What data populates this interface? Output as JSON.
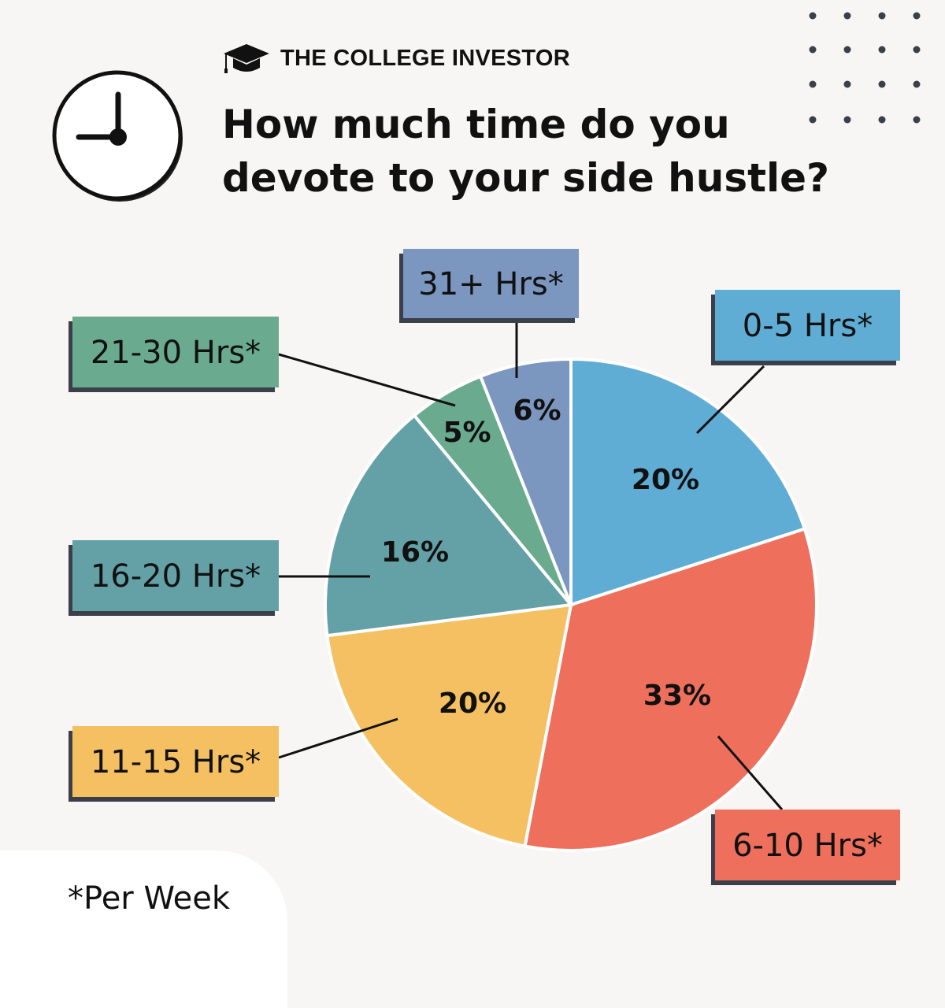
{
  "brand": {
    "name": "THE COLLEGE INVESTOR",
    "icon": "graduation-cap-icon"
  },
  "header_icon": "clock-icon",
  "footnote": "*Per Week",
  "background_color": "#f8f6f4",
  "chart_data": {
    "type": "pie",
    "title": "How much time do you devote to your side hustle?",
    "start": "top, clockwise",
    "slices": [
      {
        "label": "0-5 Hrs*",
        "value": 20,
        "value_label": "20%",
        "color": "#5fadd5"
      },
      {
        "label": "6-10 Hrs*",
        "value": 33,
        "value_label": "33%",
        "color": "#ee705c"
      },
      {
        "label": "11-15 Hrs*",
        "value": 20,
        "value_label": "20%",
        "color": "#f5c062"
      },
      {
        "label": "16-20 Hrs*",
        "value": 16,
        "value_label": "16%",
        "color": "#64a1a7"
      },
      {
        "label": "21-30 Hrs*",
        "value": 5,
        "value_label": "5%",
        "color": "#6aab8f"
      },
      {
        "label": "31+ Hrs*",
        "value": 6,
        "value_label": "6%",
        "color": "#7b96bf"
      }
    ]
  }
}
